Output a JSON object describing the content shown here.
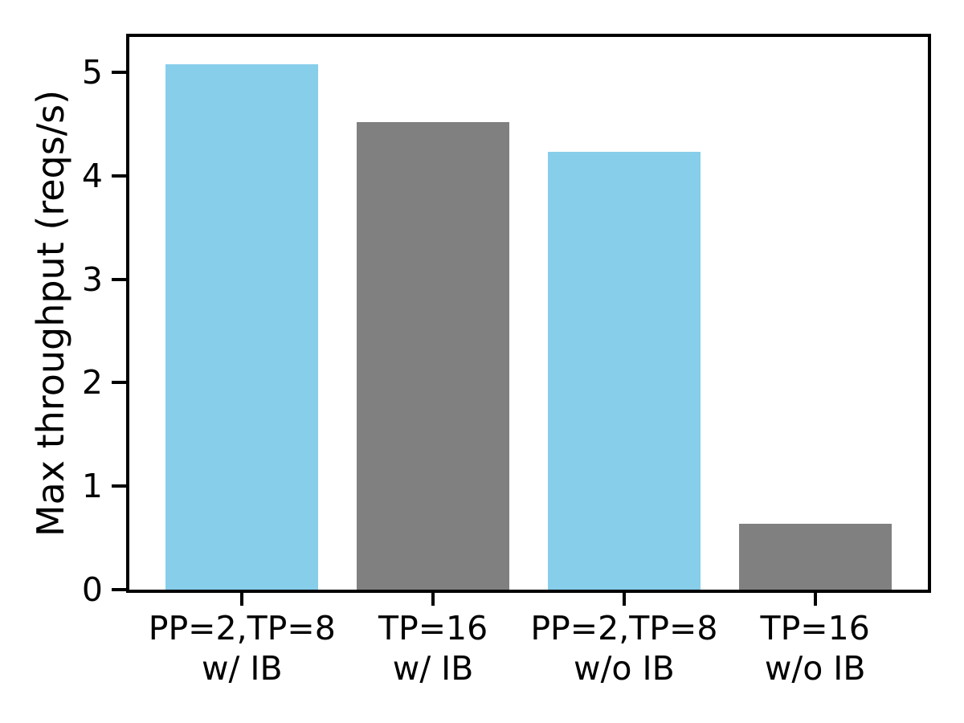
{
  "chart_data": {
    "type": "bar",
    "title": "",
    "xlabel": "",
    "ylabel": "Max throughput (reqs/s)",
    "categories": [
      "PP=2,TP=8\nw/ IB",
      "TP=16\nw/ IB",
      "PP=2,TP=8\nw/o IB",
      "TP=16\nw/o IB"
    ],
    "values": [
      5.08,
      4.52,
      4.23,
      0.64
    ],
    "bar_colors": [
      "#87CEEB",
      "#808080",
      "#87CEEB",
      "#808080"
    ],
    "yticks": [
      0,
      1,
      2,
      3,
      4,
      5
    ],
    "ylim": [
      0,
      5.34
    ],
    "xlim": [
      -0.59,
      3.59
    ],
    "bar_width": 0.8,
    "grid": false,
    "legend": null,
    "axis_color": "#000000",
    "text_color": "#000000",
    "background": "#ffffff"
  }
}
